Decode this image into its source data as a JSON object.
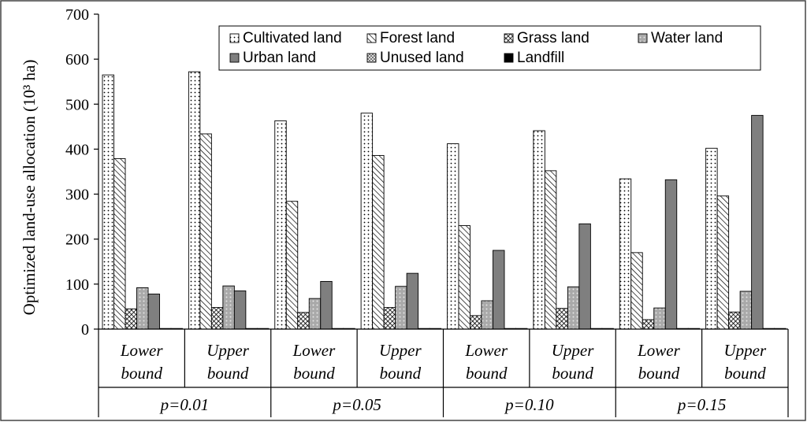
{
  "chart_data": {
    "type": "bar",
    "ylabel": "Optimized land-use allocation (10³ ha)",
    "ylim": [
      0,
      700
    ],
    "yticks": [
      0,
      100,
      200,
      300,
      400,
      500,
      600,
      700
    ],
    "legend_position": "top-right",
    "categories": [
      {
        "line1": "Lower",
        "line2": "bound"
      },
      {
        "line1": "Upper",
        "line2": "bound"
      },
      {
        "line1": "Lower",
        "line2": "bound"
      },
      {
        "line1": "Upper",
        "line2": "bound"
      },
      {
        "line1": "Lower",
        "line2": "bound"
      },
      {
        "line1": "Upper",
        "line2": "bound"
      },
      {
        "line1": "Lower",
        "line2": "bound"
      },
      {
        "line1": "Upper",
        "line2": "bound"
      }
    ],
    "groups": [
      "p=0.01",
      "p=0.05",
      "p=0.10",
      "p=0.15"
    ],
    "series": [
      {
        "name": "Cultivated land",
        "pattern": "dots",
        "values": [
          565,
          572,
          463,
          480,
          412,
          441,
          334,
          402
        ]
      },
      {
        "name": "Forest land",
        "pattern": "hatch",
        "values": [
          379,
          434,
          284,
          386,
          230,
          352,
          170,
          296
        ]
      },
      {
        "name": "Grass land",
        "pattern": "crosshatch",
        "values": [
          45,
          48,
          37,
          48,
          30,
          46,
          21,
          38
        ]
      },
      {
        "name": "Water land",
        "pattern": "lightdots",
        "values": [
          92,
          96,
          68,
          95,
          63,
          94,
          47,
          84
        ]
      },
      {
        "name": "Urban land",
        "pattern": "solidgray",
        "values": [
          78,
          85,
          106,
          124,
          175,
          234,
          332,
          475
        ]
      },
      {
        "name": "Unused land",
        "pattern": "checker",
        "values": [
          0.5,
          0.5,
          0.5,
          0.5,
          0.5,
          0.5,
          0.5,
          0.5
        ]
      },
      {
        "name": "Landfill",
        "pattern": "black",
        "values": [
          0.5,
          0.5,
          0.5,
          0.5,
          0.5,
          0.5,
          0.5,
          0.5
        ]
      }
    ]
  }
}
